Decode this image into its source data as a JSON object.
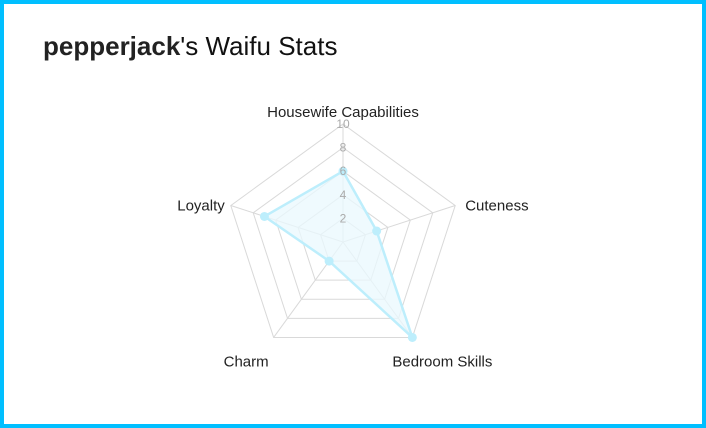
{
  "header": {
    "user": "pepperjack",
    "suffix": "'s Waifu Stats"
  },
  "colors": {
    "frame": "#00bfff",
    "grid": "#d9d9d9",
    "series_line": "#bdeefc",
    "series_fill": "#eaf8fd",
    "point": "#bdeefc"
  },
  "chart_data": {
    "type": "radar",
    "categories": [
      "Housewife Capabilities",
      "Cuteness",
      "Bedroom Skills",
      "Charm",
      "Loyalty"
    ],
    "values": [
      6,
      3,
      10,
      2,
      7
    ],
    "range": [
      0,
      10
    ],
    "ticks": [
      "2",
      "4",
      "6",
      "8",
      "10"
    ],
    "grid": true
  }
}
